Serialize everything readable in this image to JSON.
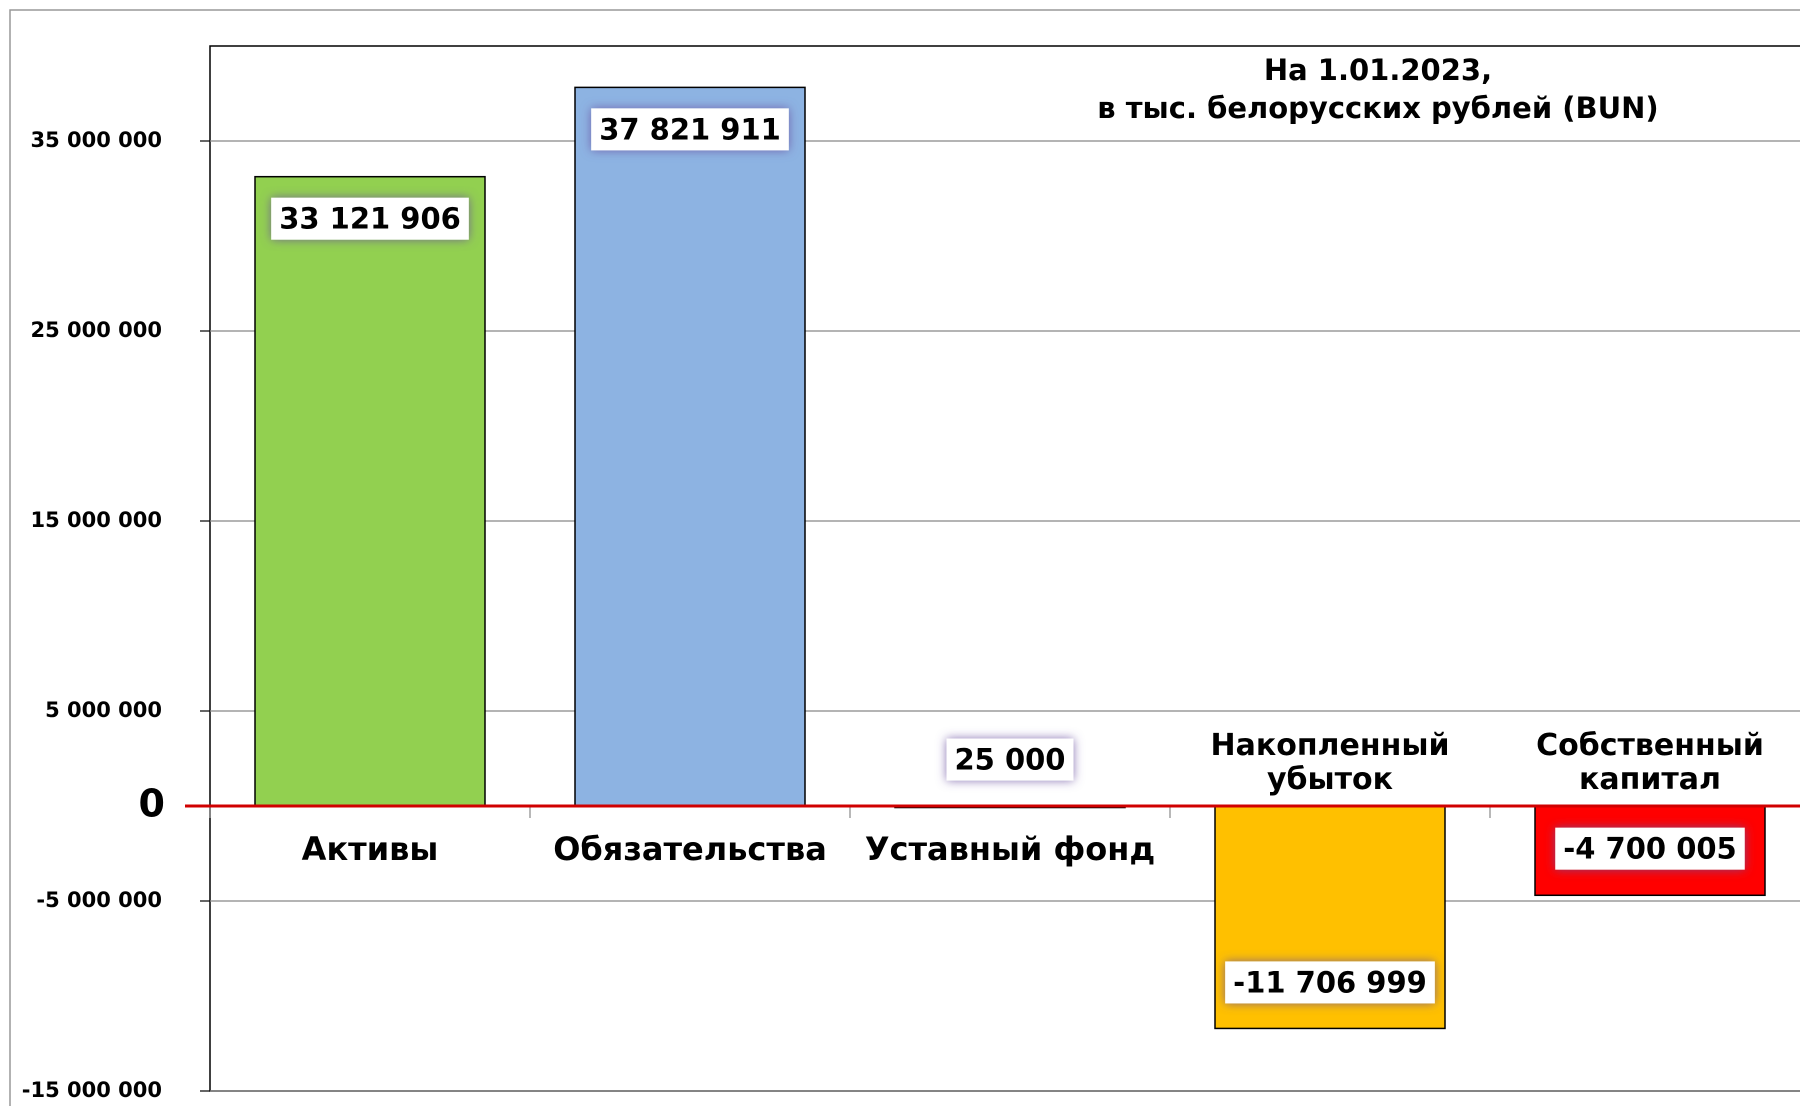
{
  "chart_data": {
    "type": "bar",
    "title": [
      "На 1.01.2023,",
      "в тыс. белорусских рублей (BUN)"
    ],
    "categories": [
      "Активы",
      "Обязательства",
      "Уставный фонд",
      "Накопленный убыток",
      "Собственный капитал"
    ],
    "values": [
      33121906,
      37821911,
      25000,
      -11706999,
      -4700005
    ],
    "value_labels": [
      "33 121 906",
      "37 821 911",
      "25 000",
      "-11 706 999",
      "-4 700 005"
    ],
    "colors": [
      "#92d050",
      "#8db3e2",
      "#c00000",
      "#ffc000",
      "#ff0000"
    ],
    "ylim": [
      -15000000,
      40000000
    ],
    "yticks": [
      {
        "value": 35000000,
        "label": "35 000 000"
      },
      {
        "value": 25000000,
        "label": "25 000 000"
      },
      {
        "value": 15000000,
        "label": "15 000 000"
      },
      {
        "value": 5000000,
        "label": "5 000 000"
      },
      0,
      {
        "value": -5000000,
        "label": "-5 000 000"
      },
      {
        "value": -15000000,
        "label": "-15 000 000"
      }
    ],
    "grid": true
  }
}
